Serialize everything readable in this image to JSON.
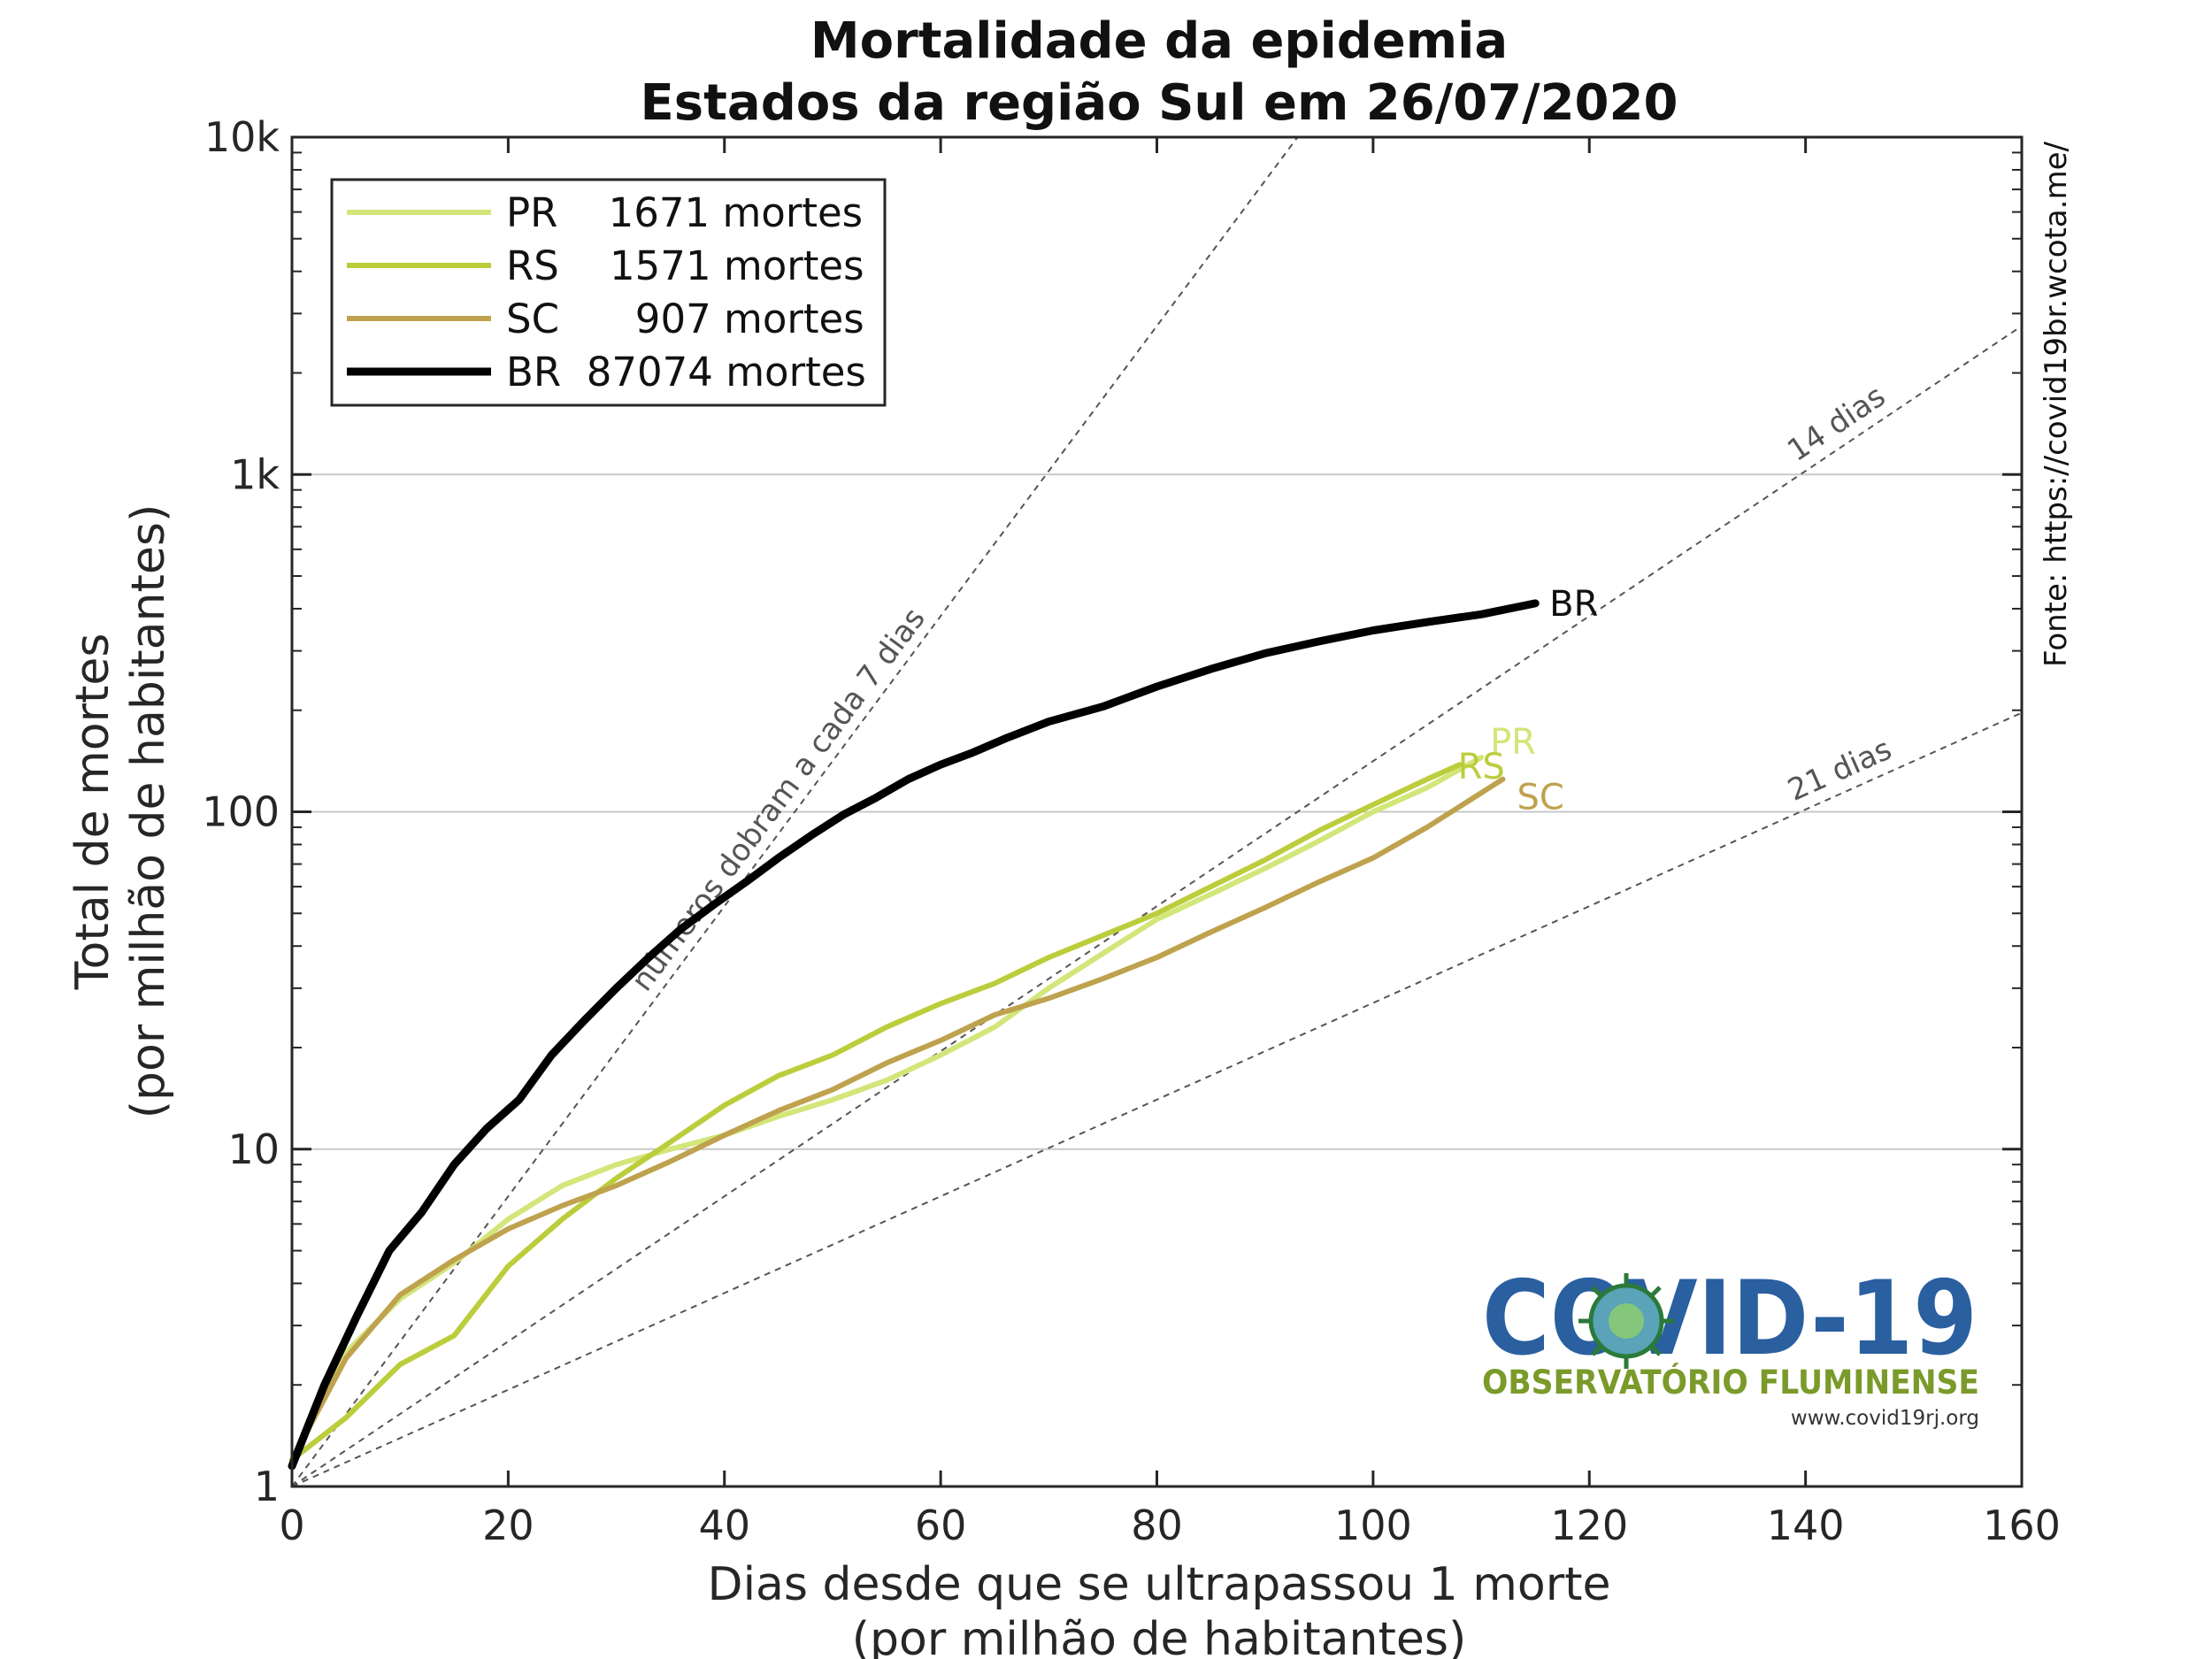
{
  "chart_data": {
    "type": "line",
    "title": "Mortalidade da epidemia",
    "subtitle": "Estados da região Sul em 26/07/2020",
    "xlabel": "Dias desde que se ultrapassou 1 morte",
    "xlabel2": "(por milhão de habitantes)",
    "ylabel": "Total de mortes",
    "ylabel2": "(por milhão de habitantes)",
    "xlim": [
      0,
      160
    ],
    "ylim": [
      1,
      10000
    ],
    "yscale": "log",
    "x_ticks": [
      0,
      20,
      40,
      60,
      80,
      100,
      120,
      140,
      160
    ],
    "x_tick_labels": [
      "0",
      "20",
      "40",
      "60",
      "80",
      "100",
      "120",
      "140",
      "160"
    ],
    "y_ticks": [
      1,
      10,
      100,
      1000,
      10000
    ],
    "y_tick_labels": [
      "1",
      "10",
      "100",
      "1k",
      "10k"
    ],
    "grid": "y-major",
    "legend_position": "top-left",
    "source_text": "Fonte: https://covid19br.wcota.me/",
    "series": [
      {
        "name": "PR",
        "legend_label": "PR    1671 mortes",
        "color": "#d2e67a",
        "x": [
          0,
          5,
          10,
          15,
          20,
          25,
          30,
          35,
          40,
          45,
          50,
          55,
          60,
          65,
          70,
          75,
          80,
          85,
          90,
          95,
          100,
          105,
          110
        ],
        "y": [
          1.2,
          2.5,
          3.6,
          4.6,
          6.2,
          7.8,
          9.0,
          10.0,
          11.0,
          12.5,
          14.0,
          16.0,
          19.0,
          23.0,
          30.0,
          38.0,
          48.0,
          57.0,
          68.0,
          82.0,
          100,
          118,
          145
        ]
      },
      {
        "name": "RS",
        "legend_label": "RS    1571 mortes",
        "color": "#bccd3c",
        "x": [
          0,
          5,
          10,
          15,
          20,
          25,
          30,
          35,
          40,
          45,
          50,
          55,
          60,
          65,
          70,
          75,
          80,
          85,
          90,
          95,
          100,
          105,
          108
        ],
        "y": [
          1.2,
          1.6,
          2.3,
          2.8,
          4.5,
          6.2,
          8.2,
          10.5,
          13.5,
          16.5,
          19.0,
          23.0,
          27.0,
          31.0,
          37.0,
          43.0,
          50.0,
          60.0,
          72.0,
          88.0,
          105,
          125,
          138
        ]
      },
      {
        "name": "SC",
        "legend_label": "SC      907 mortes",
        "color": "#bfa24e",
        "x": [
          0,
          5,
          10,
          15,
          20,
          25,
          30,
          35,
          40,
          45,
          50,
          55,
          60,
          65,
          70,
          75,
          80,
          85,
          90,
          95,
          100,
          105,
          112
        ],
        "y": [
          1.2,
          2.4,
          3.7,
          4.7,
          5.8,
          6.8,
          7.8,
          9.2,
          11.0,
          13.0,
          15.0,
          18.0,
          21.0,
          25.0,
          28.0,
          32.0,
          37.0,
          44.0,
          52.0,
          62.0,
          73.0,
          90.0,
          125
        ]
      },
      {
        "name": "BR",
        "legend_label": "BR  87074 mortes",
        "color": "#000000",
        "x": [
          0,
          3,
          6,
          9,
          12,
          15,
          18,
          21,
          24,
          27,
          30,
          33,
          36,
          39,
          42,
          45,
          48,
          51,
          54,
          57,
          60,
          63,
          66,
          70,
          75,
          80,
          85,
          90,
          95,
          100,
          105,
          110,
          115
        ],
        "y": [
          1.15,
          2.0,
          3.2,
          5.0,
          6.5,
          9.0,
          11.5,
          14.0,
          19.0,
          24.0,
          30.0,
          37.0,
          45.0,
          53.0,
          62.0,
          73.0,
          85.0,
          98.0,
          110,
          125,
          138,
          150,
          165,
          185,
          205,
          235,
          265,
          295,
          320,
          345,
          365,
          385,
          415
        ]
      }
    ],
    "reference_lines": [
      {
        "label": "números dobram a cada 7 dias",
        "doubling_days": 7
      },
      {
        "label": "14 dias",
        "doubling_days": 14
      },
      {
        "label": "21 dias",
        "doubling_days": 21
      }
    ],
    "end_labels": [
      "BR",
      "PR",
      "RS",
      "SC"
    ]
  },
  "logo": {
    "main": "COVID-19",
    "subtitle": "OBSERVATÓRIO FLUMINENSE",
    "url": "www.covid19rj.org"
  }
}
